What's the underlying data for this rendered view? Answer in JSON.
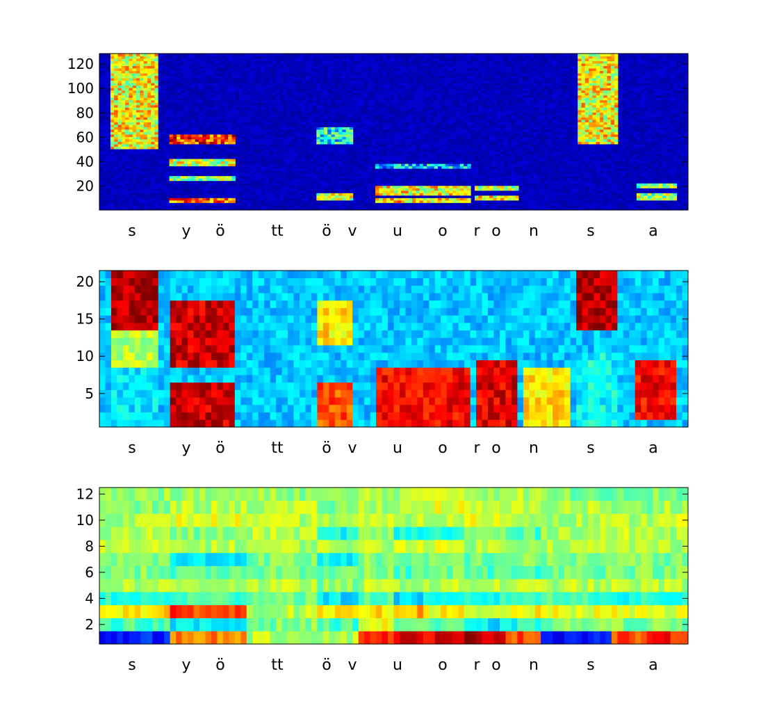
{
  "chart_data": [
    {
      "type": "heatmap",
      "rows": 128,
      "yticks": [
        20,
        40,
        60,
        80,
        100,
        120
      ],
      "ytick_labels": [
        "20",
        "40",
        "60",
        "80",
        "100",
        "120"
      ],
      "ylim": [
        0.5,
        128.5
      ],
      "colormap": "jet",
      "xlabels": [
        "s",
        "y",
        "ö",
        "tt",
        "ö",
        "v",
        "u",
        "o",
        "r",
        "o",
        "n",
        "s",
        "a"
      ],
      "segments": [
        {
          "label": "s",
          "x": [
            0.02,
            0.1
          ],
          "bands": [
            [
              50,
              128,
              0.55
            ]
          ]
        },
        {
          "label": "y",
          "x": [
            0.12,
            0.23
          ],
          "bands": [
            [
              54,
              62,
              0.75
            ],
            [
              36,
              42,
              0.5
            ],
            [
              24,
              28,
              0.45
            ],
            [
              6,
              10,
              0.7
            ]
          ]
        },
        {
          "label": "ö",
          "x": [
            0.37,
            0.43
          ],
          "bands": [
            [
              54,
              68,
              0.3
            ],
            [
              8,
              14,
              0.5
            ]
          ]
        },
        {
          "label": "uo",
          "x": [
            0.47,
            0.63
          ],
          "bands": [
            [
              12,
              20,
              0.55
            ],
            [
              6,
              10,
              0.6
            ],
            [
              34,
              38,
              0.25
            ]
          ]
        },
        {
          "label": "o",
          "x": [
            0.64,
            0.71
          ],
          "bands": [
            [
              16,
              20,
              0.5
            ],
            [
              8,
              12,
              0.55
            ]
          ]
        },
        {
          "label": "s",
          "x": [
            0.81,
            0.88
          ],
          "bands": [
            [
              54,
              128,
              0.55
            ]
          ]
        },
        {
          "label": "a",
          "x": [
            0.91,
            0.98
          ],
          "bands": [
            [
              18,
              22,
              0.45
            ],
            [
              8,
              14,
              0.45
            ]
          ]
        }
      ]
    },
    {
      "type": "heatmap",
      "rows": 21,
      "yticks": [
        5,
        10,
        15,
        20
      ],
      "ytick_labels": [
        "5",
        "10",
        "15",
        "20"
      ],
      "ylim": [
        0.5,
        21.5
      ],
      "colormap": "jet",
      "xlabels": [
        "s",
        "y",
        "ö",
        "tt",
        "ö",
        "v",
        "u",
        "o",
        "r",
        "o",
        "n",
        "s",
        "a"
      ],
      "segments": [
        {
          "label": "s",
          "x": [
            0.02,
            0.1
          ],
          "bands": [
            [
              14,
              21,
              0.95
            ],
            [
              9,
              13,
              0.55
            ],
            [
              1,
              8,
              0.35
            ]
          ]
        },
        {
          "label": "yö",
          "x": [
            0.12,
            0.23
          ],
          "bands": [
            [
              9,
              17,
              0.92
            ],
            [
              1,
              6,
              0.92
            ],
            [
              18,
              21,
              0.3
            ]
          ]
        },
        {
          "label": "tt",
          "x": [
            0.24,
            0.36
          ],
          "bands": [
            [
              1,
              21,
              0.12
            ]
          ]
        },
        {
          "label": "ö",
          "x": [
            0.37,
            0.43
          ],
          "bands": [
            [
              1,
              6,
              0.8
            ],
            [
              12,
              17,
              0.65
            ]
          ]
        },
        {
          "label": "uo",
          "x": [
            0.47,
            0.63
          ],
          "bands": [
            [
              1,
              8,
              0.88
            ],
            [
              18,
              21,
              0.25
            ]
          ]
        },
        {
          "label": "o",
          "x": [
            0.64,
            0.71
          ],
          "bands": [
            [
              1,
              9,
              0.9
            ],
            [
              18,
              21,
              0.2
            ]
          ]
        },
        {
          "label": "n",
          "x": [
            0.72,
            0.8
          ],
          "bands": [
            [
              1,
              8,
              0.65
            ]
          ]
        },
        {
          "label": "s",
          "x": [
            0.81,
            0.88
          ],
          "bands": [
            [
              14,
              21,
              0.95
            ],
            [
              1,
              10,
              0.38
            ]
          ]
        },
        {
          "label": "a",
          "x": [
            0.91,
            0.98
          ],
          "bands": [
            [
              2,
              9,
              0.88
            ]
          ]
        }
      ]
    },
    {
      "type": "heatmap",
      "rows": 12,
      "yticks": [
        2,
        4,
        6,
        8,
        10,
        12
      ],
      "ytick_labels": [
        "2",
        "4",
        "6",
        "8",
        "10",
        "12"
      ],
      "ylim": [
        0.5,
        12.5
      ],
      "colormap": "jet",
      "xlabels": [
        "s",
        "y",
        "ö",
        "tt",
        "ö",
        "v",
        "u",
        "o",
        "r",
        "o",
        "n",
        "s",
        "a"
      ],
      "row_levels": [
        [
          0.15,
          0.15,
          0.75,
          0.75,
          0.55,
          0.55,
          0.55,
          0.85,
          0.9,
          0.9,
          0.95,
          0.8,
          0.15,
          0.15,
          0.8,
          0.85
        ],
        [
          0.45,
          0.45,
          0.35,
          0.35,
          0.5,
          0.5,
          0.45,
          0.6,
          0.5,
          0.45,
          0.35,
          0.4,
          0.5,
          0.5,
          0.5,
          0.5
        ],
        [
          0.65,
          0.65,
          0.82,
          0.8,
          0.55,
          0.55,
          0.62,
          0.65,
          0.7,
          0.62,
          0.55,
          0.62,
          0.6,
          0.6,
          0.6,
          0.6
        ],
        [
          0.4,
          0.4,
          0.45,
          0.45,
          0.5,
          0.5,
          0.35,
          0.45,
          0.35,
          0.35,
          0.4,
          0.45,
          0.45,
          0.45,
          0.4,
          0.4
        ],
        [
          0.55,
          0.55,
          0.55,
          0.55,
          0.55,
          0.55,
          0.5,
          0.55,
          0.55,
          0.55,
          0.55,
          0.55,
          0.55,
          0.55,
          0.55,
          0.55
        ],
        [
          0.5,
          0.5,
          0.45,
          0.45,
          0.5,
          0.5,
          0.5,
          0.5,
          0.45,
          0.5,
          0.45,
          0.45,
          0.5,
          0.5,
          0.5,
          0.5
        ],
        [
          0.5,
          0.5,
          0.35,
          0.35,
          0.5,
          0.5,
          0.38,
          0.5,
          0.45,
          0.5,
          0.48,
          0.5,
          0.5,
          0.5,
          0.5,
          0.5
        ],
        [
          0.55,
          0.55,
          0.55,
          0.55,
          0.55,
          0.55,
          0.55,
          0.55,
          0.6,
          0.58,
          0.55,
          0.55,
          0.55,
          0.55,
          0.55,
          0.55
        ],
        [
          0.55,
          0.55,
          0.5,
          0.5,
          0.55,
          0.55,
          0.4,
          0.5,
          0.4,
          0.4,
          0.5,
          0.45,
          0.55,
          0.55,
          0.55,
          0.55
        ],
        [
          0.55,
          0.55,
          0.6,
          0.6,
          0.55,
          0.55,
          0.55,
          0.55,
          0.55,
          0.55,
          0.6,
          0.55,
          0.55,
          0.55,
          0.55,
          0.6
        ],
        [
          0.5,
          0.5,
          0.55,
          0.55,
          0.55,
          0.55,
          0.5,
          0.55,
          0.55,
          0.6,
          0.55,
          0.55,
          0.55,
          0.55,
          0.5,
          0.55
        ],
        [
          0.52,
          0.52,
          0.52,
          0.52,
          0.52,
          0.52,
          0.5,
          0.55,
          0.55,
          0.6,
          0.55,
          0.55,
          0.5,
          0.5,
          0.5,
          0.5
        ]
      ]
    }
  ]
}
